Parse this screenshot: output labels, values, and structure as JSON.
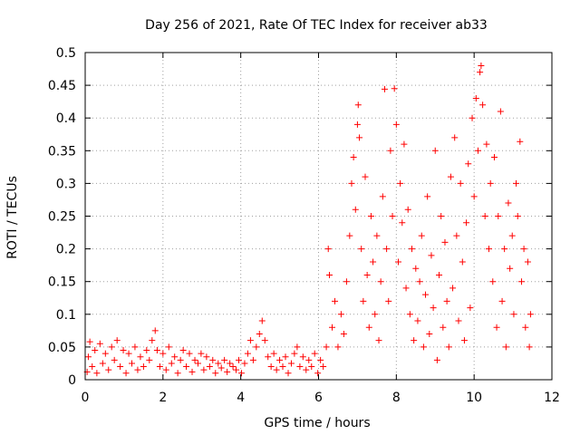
{
  "chart_data": {
    "type": "scatter",
    "title": "Day 256 of 2021, Rate Of TEC Index for receiver ab33",
    "xlabel": "GPS time / hours",
    "ylabel": "ROTI / TECUs",
    "xlim": [
      0,
      12
    ],
    "ylim": [
      0,
      0.5
    ],
    "xticks": [
      0,
      2,
      4,
      6,
      8,
      10,
      12
    ],
    "yticks": [
      0,
      0.05,
      0.1,
      0.15,
      0.2,
      0.25,
      0.3,
      0.35,
      0.4,
      0.45,
      0.5
    ],
    "xtick_labels": [
      "0",
      "2",
      "4",
      "6",
      "8",
      "10",
      "12"
    ],
    "ytick_labels": [
      "0",
      "0.05",
      "0.1",
      "0.15",
      "0.2",
      "0.25",
      "0.3",
      "0.35",
      "0.4",
      "0.45",
      "0.5"
    ],
    "grid": true,
    "legend": "none",
    "marker": "plus",
    "color": "#ff0000",
    "series": [
      {
        "values": [
          [
            0.05,
            0.012
          ],
          [
            0.08,
            0.035
          ],
          [
            0.12,
            0.058
          ],
          [
            0.18,
            0.02
          ],
          [
            0.25,
            0.045
          ],
          [
            0.3,
            0.01
          ],
          [
            0.38,
            0.055
          ],
          [
            0.45,
            0.025
          ],
          [
            0.52,
            0.04
          ],
          [
            0.6,
            0.015
          ],
          [
            0.68,
            0.05
          ],
          [
            0.75,
            0.03
          ],
          [
            0.82,
            0.06
          ],
          [
            0.9,
            0.02
          ],
          [
            0.98,
            0.045
          ],
          [
            1.05,
            0.01
          ],
          [
            1.12,
            0.04
          ],
          [
            1.2,
            0.025
          ],
          [
            1.28,
            0.05
          ],
          [
            1.35,
            0.015
          ],
          [
            1.42,
            0.035
          ],
          [
            1.5,
            0.02
          ],
          [
            1.58,
            0.045
          ],
          [
            1.65,
            0.03
          ],
          [
            1.72,
            0.06
          ],
          [
            1.8,
            0.075
          ],
          [
            1.85,
            0.045
          ],
          [
            1.92,
            0.02
          ],
          [
            2.0,
            0.04
          ],
          [
            2.08,
            0.015
          ],
          [
            2.15,
            0.05
          ],
          [
            2.22,
            0.025
          ],
          [
            2.3,
            0.035
          ],
          [
            2.38,
            0.01
          ],
          [
            2.45,
            0.03
          ],
          [
            2.52,
            0.045
          ],
          [
            2.6,
            0.02
          ],
          [
            2.68,
            0.04
          ],
          [
            2.75,
            0.012
          ],
          [
            2.82,
            0.03
          ],
          [
            2.9,
            0.025
          ],
          [
            2.98,
            0.04
          ],
          [
            3.05,
            0.015
          ],
          [
            3.12,
            0.035
          ],
          [
            3.2,
            0.02
          ],
          [
            3.28,
            0.03
          ],
          [
            3.35,
            0.01
          ],
          [
            3.42,
            0.025
          ],
          [
            3.5,
            0.018
          ],
          [
            3.58,
            0.03
          ],
          [
            3.65,
            0.012
          ],
          [
            3.72,
            0.025
          ],
          [
            3.8,
            0.02
          ],
          [
            3.88,
            0.015
          ],
          [
            3.95,
            0.03
          ],
          [
            4.02,
            0.01
          ],
          [
            4.1,
            0.025
          ],
          [
            4.18,
            0.04
          ],
          [
            4.25,
            0.06
          ],
          [
            4.32,
            0.03
          ],
          [
            4.4,
            0.05
          ],
          [
            4.48,
            0.07
          ],
          [
            4.55,
            0.09
          ],
          [
            4.62,
            0.06
          ],
          [
            4.7,
            0.035
          ],
          [
            4.78,
            0.02
          ],
          [
            4.85,
            0.04
          ],
          [
            4.92,
            0.015
          ],
          [
            5.0,
            0.03
          ],
          [
            5.08,
            0.02
          ],
          [
            5.15,
            0.035
          ],
          [
            5.22,
            0.01
          ],
          [
            5.3,
            0.025
          ],
          [
            5.38,
            0.04
          ],
          [
            5.45,
            0.05
          ],
          [
            5.52,
            0.02
          ],
          [
            5.6,
            0.035
          ],
          [
            5.68,
            0.015
          ],
          [
            5.75,
            0.03
          ],
          [
            5.82,
            0.02
          ],
          [
            5.9,
            0.04
          ],
          [
            5.98,
            0.01
          ],
          [
            6.05,
            0.03
          ],
          [
            6.12,
            0.02
          ],
          [
            6.2,
            0.05
          ],
          [
            6.25,
            0.2
          ],
          [
            6.28,
            0.16
          ],
          [
            6.35,
            0.08
          ],
          [
            6.42,
            0.12
          ],
          [
            6.5,
            0.05
          ],
          [
            6.58,
            0.1
          ],
          [
            6.65,
            0.07
          ],
          [
            6.72,
            0.15
          ],
          [
            6.8,
            0.22
          ],
          [
            6.85,
            0.3
          ],
          [
            6.9,
            0.34
          ],
          [
            6.95,
            0.26
          ],
          [
            7.0,
            0.39
          ],
          [
            7.02,
            0.42
          ],
          [
            7.05,
            0.37
          ],
          [
            7.1,
            0.2
          ],
          [
            7.15,
            0.12
          ],
          [
            7.2,
            0.31
          ],
          [
            7.25,
            0.16
          ],
          [
            7.3,
            0.08
          ],
          [
            7.35,
            0.25
          ],
          [
            7.4,
            0.18
          ],
          [
            7.45,
            0.1
          ],
          [
            7.5,
            0.22
          ],
          [
            7.55,
            0.06
          ],
          [
            7.6,
            0.15
          ],
          [
            7.65,
            0.28
          ],
          [
            7.7,
            0.444
          ],
          [
            7.75,
            0.2
          ],
          [
            7.8,
            0.12
          ],
          [
            7.85,
            0.35
          ],
          [
            7.9,
            0.25
          ],
          [
            7.95,
            0.445
          ],
          [
            8.0,
            0.39
          ],
          [
            8.05,
            0.18
          ],
          [
            8.1,
            0.3
          ],
          [
            8.15,
            0.24
          ],
          [
            8.2,
            0.36
          ],
          [
            8.25,
            0.14
          ],
          [
            8.3,
            0.26
          ],
          [
            8.35,
            0.1
          ],
          [
            8.4,
            0.2
          ],
          [
            8.45,
            0.06
          ],
          [
            8.5,
            0.17
          ],
          [
            8.55,
            0.09
          ],
          [
            8.6,
            0.15
          ],
          [
            8.65,
            0.22
          ],
          [
            8.7,
            0.05
          ],
          [
            8.75,
            0.13
          ],
          [
            8.8,
            0.28
          ],
          [
            8.85,
            0.07
          ],
          [
            8.9,
            0.19
          ],
          [
            8.95,
            0.11
          ],
          [
            9.0,
            0.35
          ],
          [
            9.05,
            0.03
          ],
          [
            9.1,
            0.16
          ],
          [
            9.15,
            0.25
          ],
          [
            9.2,
            0.08
          ],
          [
            9.25,
            0.21
          ],
          [
            9.3,
            0.12
          ],
          [
            9.35,
            0.05
          ],
          [
            9.4,
            0.31
          ],
          [
            9.45,
            0.14
          ],
          [
            9.5,
            0.37
          ],
          [
            9.55,
            0.22
          ],
          [
            9.6,
            0.09
          ],
          [
            9.65,
            0.3
          ],
          [
            9.7,
            0.18
          ],
          [
            9.75,
            0.06
          ],
          [
            9.8,
            0.24
          ],
          [
            9.85,
            0.33
          ],
          [
            9.9,
            0.11
          ],
          [
            9.95,
            0.4
          ],
          [
            10.0,
            0.28
          ],
          [
            10.05,
            0.43
          ],
          [
            10.1,
            0.35
          ],
          [
            10.15,
            0.47
          ],
          [
            10.18,
            0.48
          ],
          [
            10.22,
            0.42
          ],
          [
            10.28,
            0.25
          ],
          [
            10.32,
            0.36
          ],
          [
            10.38,
            0.2
          ],
          [
            10.42,
            0.3
          ],
          [
            10.48,
            0.15
          ],
          [
            10.52,
            0.34
          ],
          [
            10.58,
            0.08
          ],
          [
            10.62,
            0.25
          ],
          [
            10.68,
            0.41
          ],
          [
            10.72,
            0.12
          ],
          [
            10.78,
            0.2
          ],
          [
            10.82,
            0.05
          ],
          [
            10.88,
            0.27
          ],
          [
            10.92,
            0.17
          ],
          [
            10.98,
            0.22
          ],
          [
            11.02,
            0.1
          ],
          [
            11.08,
            0.3
          ],
          [
            11.12,
            0.25
          ],
          [
            11.18,
            0.364
          ],
          [
            11.22,
            0.15
          ],
          [
            11.28,
            0.2
          ],
          [
            11.32,
            0.08
          ],
          [
            11.38,
            0.18
          ],
          [
            11.42,
            0.05
          ],
          [
            11.45,
            0.1
          ]
        ]
      }
    ]
  }
}
